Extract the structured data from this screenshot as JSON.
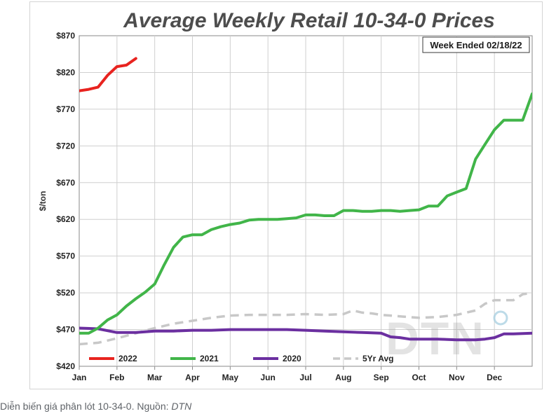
{
  "chart_data": {
    "type": "line",
    "title": "Average Weekly Retail 10-34-0 Prices",
    "subtitle": "Week Ended 02/18/22",
    "ylabel": "$/ton",
    "xlabel": "",
    "ylim": [
      420,
      870
    ],
    "yticks": [
      "$420",
      "$470",
      "$520",
      "$570",
      "$620",
      "$670",
      "$720",
      "$770",
      "$820",
      "$870"
    ],
    "categories": [
      "Jan",
      "Feb",
      "Mar",
      "Apr",
      "May",
      "Jun",
      "Jul",
      "Aug",
      "Sep",
      "Oct",
      "Nov",
      "Dec"
    ],
    "grid": true,
    "legend_position": "bottom-left",
    "watermark": "DTN",
    "series": [
      {
        "name": "2022",
        "color": "#e8231f",
        "dash": false,
        "x": [
          0,
          0.25,
          0.5,
          0.75,
          1.0,
          1.25,
          1.5
        ],
        "y": [
          795,
          797,
          800,
          816,
          828,
          830,
          839
        ]
      },
      {
        "name": "2021",
        "color": "#41b549",
        "dash": false,
        "x": [
          0,
          0.25,
          0.5,
          0.75,
          1.0,
          1.25,
          1.5,
          1.75,
          2.0,
          2.25,
          2.5,
          2.75,
          3.0,
          3.25,
          3.5,
          3.75,
          4.0,
          4.25,
          4.5,
          4.75,
          5.0,
          5.25,
          5.5,
          5.75,
          6.0,
          6.25,
          6.5,
          6.75,
          7.0,
          7.25,
          7.5,
          7.75,
          8.0,
          8.25,
          8.5,
          8.75,
          9.0,
          9.25,
          9.5,
          9.75,
          10.0,
          10.25,
          10.5,
          10.75,
          11.0,
          11.25,
          11.5,
          11.75,
          12.0
        ],
        "y": [
          465,
          465,
          472,
          483,
          490,
          502,
          512,
          521,
          532,
          558,
          582,
          596,
          599,
          599,
          606,
          610,
          613,
          615,
          619,
          620,
          620,
          620,
          621,
          622,
          626,
          626,
          625,
          625,
          632,
          632,
          631,
          631,
          632,
          632,
          631,
          632,
          633,
          638,
          638,
          652,
          657,
          662,
          702,
          722,
          742,
          755,
          755,
          755,
          791
        ]
      },
      {
        "name": "2020",
        "color": "#6b2fa0",
        "dash": false,
        "x": [
          0,
          0.5,
          1.0,
          1.5,
          2.0,
          2.5,
          3.0,
          3.5,
          4.0,
          4.5,
          5.0,
          5.5,
          6.0,
          6.5,
          7.0,
          7.5,
          8.0,
          8.25,
          8.5,
          8.75,
          9.0,
          9.5,
          10.0,
          10.5,
          10.75,
          11.0,
          11.25,
          11.5,
          12.0
        ],
        "y": [
          472,
          471,
          466,
          466,
          468,
          468,
          469,
          469,
          470,
          470,
          470,
          470,
          469,
          468,
          467,
          466,
          465,
          460,
          459,
          457,
          457,
          457,
          456,
          456,
          457,
          459,
          464,
          464,
          465
        ]
      },
      {
        "name": "5Yr Avg",
        "color": "#c8c8c8",
        "dash": true,
        "x": [
          0,
          0.5,
          1.0,
          1.5,
          2.0,
          2.5,
          3.0,
          3.5,
          4.0,
          4.5,
          5.0,
          5.5,
          6.0,
          6.5,
          7.0,
          7.25,
          7.5,
          7.75,
          8.0,
          8.5,
          9.0,
          9.5,
          10.0,
          10.5,
          10.75,
          11.0,
          11.25,
          11.5,
          11.75,
          12.0
        ],
        "y": [
          450,
          452,
          458,
          465,
          472,
          478,
          482,
          486,
          489,
          490,
          490,
          490,
          491,
          490,
          491,
          496,
          493,
          492,
          490,
          488,
          486,
          487,
          490,
          496,
          505,
          510,
          510,
          510,
          518,
          520
        ]
      }
    ]
  },
  "caption": {
    "text": "Diễn biến giá phân lót 10-34-0. Nguồn: ",
    "source": "DTN"
  }
}
